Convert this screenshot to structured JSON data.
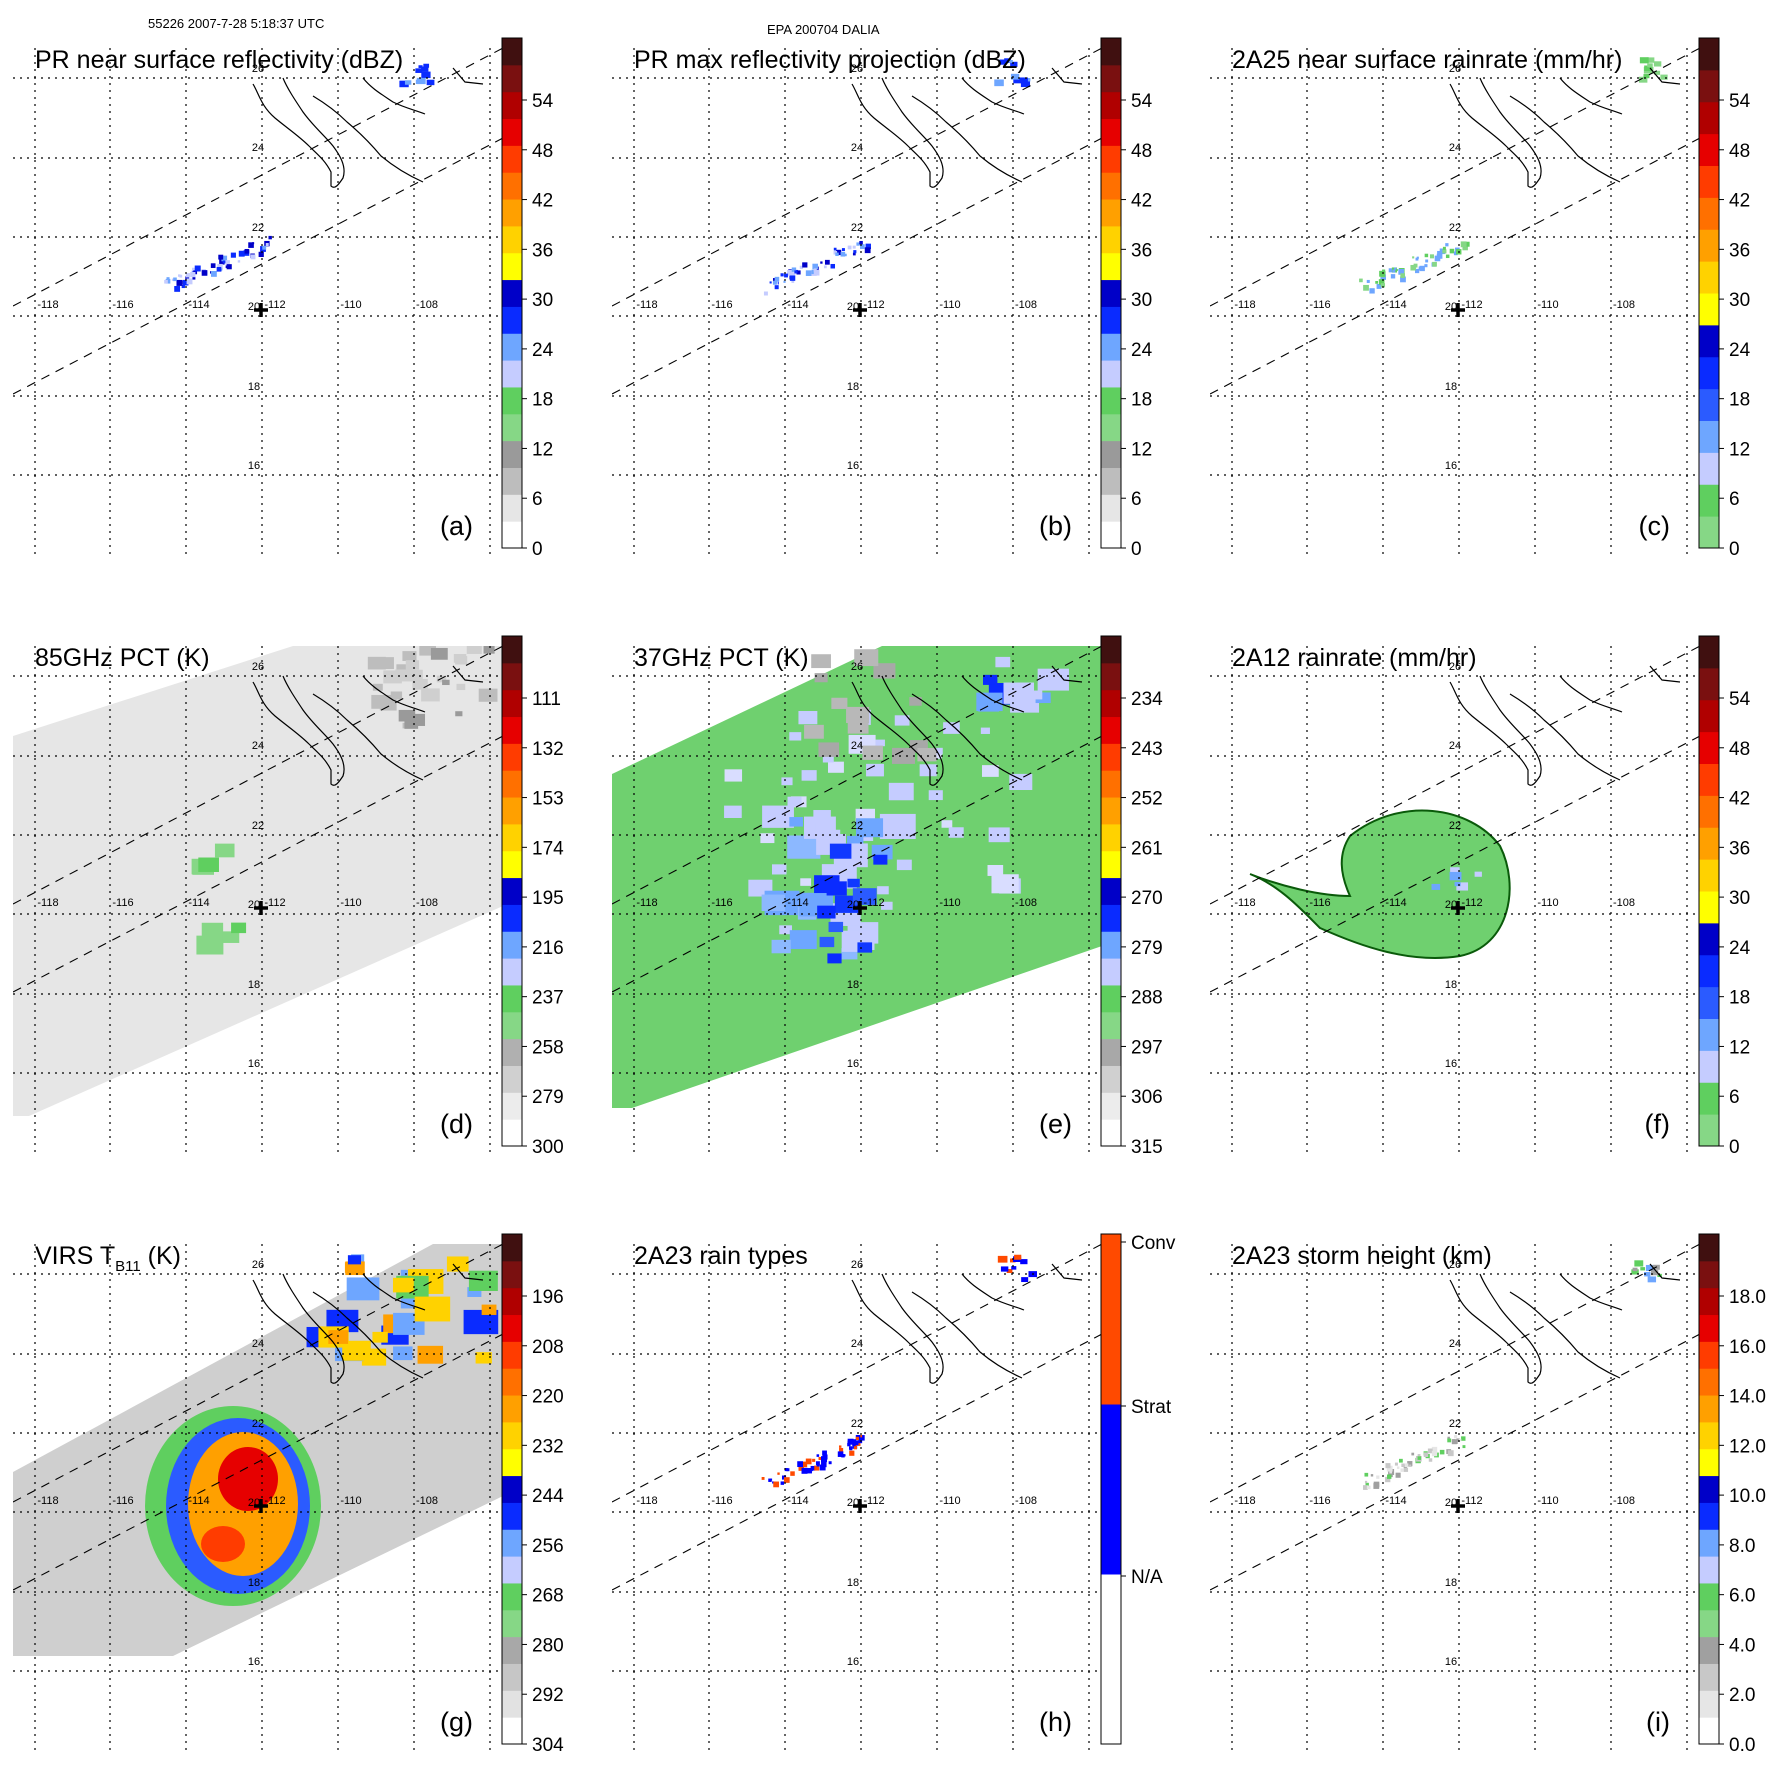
{
  "header": {
    "orbit_time": "55226 2007-7-28 5:18:37 UTC",
    "storm": "EPA 200704 DALIA"
  },
  "grid": {
    "lon_labels": [
      "-118",
      "-116",
      "-114",
      "-112",
      "-110",
      "-108"
    ],
    "lat_labels": [
      "26",
      "24",
      "22",
      "20",
      "18",
      "16"
    ]
  },
  "panels": [
    {
      "id": "a",
      "title": "PR near surface reflectivity (dBZ)",
      "label": "(a)",
      "bg": "none",
      "rain": "pr_band",
      "colorbar": {
        "colors": [
          "#ffffff",
          "#e6e6e6",
          "#bdbdbd",
          "#9a9a9a",
          "#86d786",
          "#5fcf5f",
          "#c5ccff",
          "#6ea6ff",
          "#0a2bff",
          "#0000c8",
          "#ffff00",
          "#ffd200",
          "#ffa000",
          "#ff7000",
          "#ff3c00",
          "#e60000",
          "#b00000",
          "#7a1010",
          "#401010"
        ],
        "ticks": [
          "54",
          "48",
          "42",
          "36",
          "30",
          "24",
          "18",
          "12",
          "6",
          "0"
        ]
      }
    },
    {
      "id": "b",
      "title": "PR max reflectivity projection (dBZ)",
      "label": "(b)",
      "bg": "none",
      "rain": "pr_band",
      "colorbar": {
        "colors": [
          "#ffffff",
          "#e6e6e6",
          "#bdbdbd",
          "#9a9a9a",
          "#86d786",
          "#5fcf5f",
          "#c5ccff",
          "#6ea6ff",
          "#0a2bff",
          "#0000c8",
          "#ffff00",
          "#ffd200",
          "#ffa000",
          "#ff7000",
          "#ff3c00",
          "#e60000",
          "#b00000",
          "#7a1010",
          "#401010"
        ],
        "ticks": [
          "54",
          "48",
          "42",
          "36",
          "30",
          "24",
          "18",
          "12",
          "6",
          "0"
        ]
      }
    },
    {
      "id": "c",
      "title": "2A25 near surface rainrate (mm/hr)",
      "label": "(c)",
      "bg": "none",
      "rain": "pr_band_green",
      "colorbar": {
        "colors": [
          "#86d786",
          "#5fcf5f",
          "#c5ccff",
          "#6ea6ff",
          "#2b5bff",
          "#0a2bff",
          "#0000c8",
          "#ffff00",
          "#ffd200",
          "#ffa000",
          "#ff7000",
          "#ff3c00",
          "#e60000",
          "#b00000",
          "#7a1010",
          "#401010"
        ],
        "ticks": [
          "54",
          "48",
          "42",
          "36",
          "30",
          "24",
          "18",
          "12",
          "6",
          "0"
        ]
      }
    },
    {
      "id": "d",
      "title": "85GHz PCT (K)",
      "label": "(d)",
      "bg": "gray_swath",
      "rain": "pct85",
      "colorbar": {
        "colors": [
          "#ffffff",
          "#ececec",
          "#d0d0d0",
          "#b0b0b0",
          "#86d786",
          "#5fcf5f",
          "#c5ccff",
          "#6ea6ff",
          "#0a2bff",
          "#0000c8",
          "#ffff00",
          "#ffd200",
          "#ffa000",
          "#ff7000",
          "#ff3c00",
          "#e60000",
          "#b00000",
          "#7a1010",
          "#401010"
        ],
        "ticks": [
          "111",
          "132",
          "153",
          "174",
          "195",
          "216",
          "237",
          "258",
          "279",
          "300"
        ]
      }
    },
    {
      "id": "e",
      "title": "37GHz PCT (K)",
      "label": "(e)",
      "bg": "green_swath",
      "rain": "pct37",
      "colorbar": {
        "colors": [
          "#ffffff",
          "#ececec",
          "#d0d0d0",
          "#a8a8a8",
          "#86d786",
          "#5fcf5f",
          "#c5ccff",
          "#6ea6ff",
          "#0a2bff",
          "#0000c8",
          "#ffff00",
          "#ffd200",
          "#ffa000",
          "#ff7000",
          "#ff3c00",
          "#e60000",
          "#b00000",
          "#7a1010",
          "#401010"
        ],
        "ticks": [
          "234",
          "243",
          "252",
          "261",
          "270",
          "279",
          "288",
          "297",
          "306",
          "315"
        ]
      }
    },
    {
      "id": "f",
      "title": "2A12 rainrate (mm/hr)",
      "label": "(f)",
      "bg": "none",
      "rain": "tmi_rain",
      "colorbar": {
        "colors": [
          "#86d786",
          "#5fcf5f",
          "#c5ccff",
          "#6ea6ff",
          "#2b5bff",
          "#0a2bff",
          "#0000c8",
          "#ffff00",
          "#ffd200",
          "#ffa000",
          "#ff7000",
          "#ff3c00",
          "#e60000",
          "#b00000",
          "#7a1010",
          "#401010"
        ],
        "ticks": [
          "54",
          "48",
          "42",
          "36",
          "30",
          "24",
          "18",
          "12",
          "6",
          "0"
        ]
      }
    },
    {
      "id": "g",
      "title": "VIRS T",
      "title_sub": "B11",
      "title_unit": " (K)",
      "label": "(g)",
      "bg": "virs",
      "rain": "virs",
      "colorbar": {
        "colors": [
          "#ffffff",
          "#e2e2e2",
          "#c6c6c6",
          "#a8a8a8",
          "#86d786",
          "#5fcf5f",
          "#c5ccff",
          "#6ea6ff",
          "#0a2bff",
          "#0000c8",
          "#ffff00",
          "#ffd200",
          "#ffa000",
          "#ff7000",
          "#ff3c00",
          "#e60000",
          "#b00000",
          "#7a1010",
          "#401010"
        ],
        "ticks": [
          "196",
          "208",
          "220",
          "232",
          "244",
          "256",
          "268",
          "280",
          "292",
          "304"
        ]
      }
    },
    {
      "id": "h",
      "title": "2A23 rain types",
      "label": "(h)",
      "bg": "none",
      "rain": "types",
      "colorbar": {
        "colors": [
          "#ffffff",
          "#0000ff",
          "#ff4a00"
        ],
        "ticks": [
          "Conv",
          "Strat",
          "N/A"
        ]
      }
    },
    {
      "id": "i",
      "title": "2A23 storm height (km)",
      "label": "(i)",
      "bg": "none",
      "rain": "height",
      "colorbar": {
        "colors": [
          "#ffffff",
          "#e6e6e6",
          "#c8c8c8",
          "#a0a0a0",
          "#86d786",
          "#5fcf5f",
          "#c5ccff",
          "#6ea6ff",
          "#0a2bff",
          "#0000c8",
          "#ffff00",
          "#ffd200",
          "#ffa000",
          "#ff7000",
          "#ff3c00",
          "#e60000",
          "#b00000",
          "#7a1010",
          "#401010"
        ],
        "ticks": [
          "18.0",
          "16.0",
          "14.0",
          "12.0",
          "10.0",
          "8.0",
          "6.0",
          "4.0",
          "2.0",
          "0.0"
        ]
      }
    }
  ]
}
